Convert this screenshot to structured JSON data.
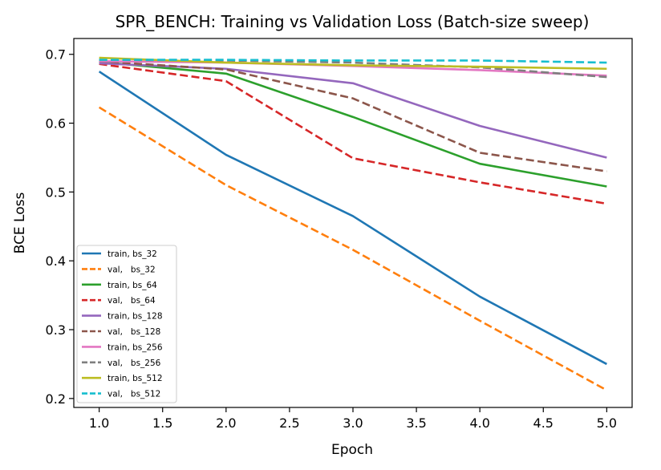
{
  "chart_data": {
    "type": "line",
    "title": "SPR_BENCH: Training vs Validation Loss (Batch-size sweep)",
    "xlabel": "Epoch",
    "ylabel": "BCE Loss",
    "x": [
      1,
      2,
      3,
      4,
      5
    ],
    "xlim": [
      0.8,
      5.2
    ],
    "ylim": [
      0.187,
      0.723
    ],
    "xticks": [
      "1.0",
      "1.5",
      "2.0",
      "2.5",
      "3.0",
      "3.5",
      "4.0",
      "4.5",
      "5.0"
    ],
    "yticks": [
      "0.2",
      "0.3",
      "0.4",
      "0.5",
      "0.6",
      "0.7"
    ],
    "grid": false,
    "legend_position": "lower-left",
    "series": [
      {
        "name": "train, bs_32",
        "style": "solid",
        "color": "#1f77b4",
        "values": [
          0.675,
          0.554,
          0.465,
          0.348,
          0.25
        ]
      },
      {
        "name": "val,   bs_32",
        "style": "dashed",
        "color": "#ff7f0e",
        "values": [
          0.623,
          0.51,
          0.416,
          0.313,
          0.212
        ]
      },
      {
        "name": "train, bs_64",
        "style": "solid",
        "color": "#2ca02c",
        "values": [
          0.689,
          0.672,
          0.609,
          0.541,
          0.508
        ]
      },
      {
        "name": "val,   bs_64",
        "style": "dashed",
        "color": "#d62728",
        "values": [
          0.686,
          0.661,
          0.549,
          0.514,
          0.483
        ]
      },
      {
        "name": "train, bs_128",
        "style": "solid",
        "color": "#9467bd",
        "values": [
          0.687,
          0.679,
          0.658,
          0.596,
          0.55
        ]
      },
      {
        "name": "val,   bs_128",
        "style": "dashed",
        "color": "#8c564b",
        "values": [
          0.69,
          0.678,
          0.636,
          0.557,
          0.53
        ]
      },
      {
        "name": "train, bs_256",
        "style": "solid",
        "color": "#e377c2",
        "values": [
          0.69,
          0.688,
          0.683,
          0.677,
          0.669
        ]
      },
      {
        "name": "val,   bs_256",
        "style": "dashed",
        "color": "#7f7f7f",
        "values": [
          0.692,
          0.691,
          0.688,
          0.681,
          0.667
        ]
      },
      {
        "name": "train, bs_512",
        "style": "solid",
        "color": "#bcbd22",
        "values": [
          0.695,
          0.688,
          0.684,
          0.682,
          0.679
        ]
      },
      {
        "name": "val,   bs_512",
        "style": "dashed",
        "color": "#17becf",
        "values": [
          0.692,
          0.692,
          0.691,
          0.691,
          0.688
        ]
      }
    ]
  }
}
